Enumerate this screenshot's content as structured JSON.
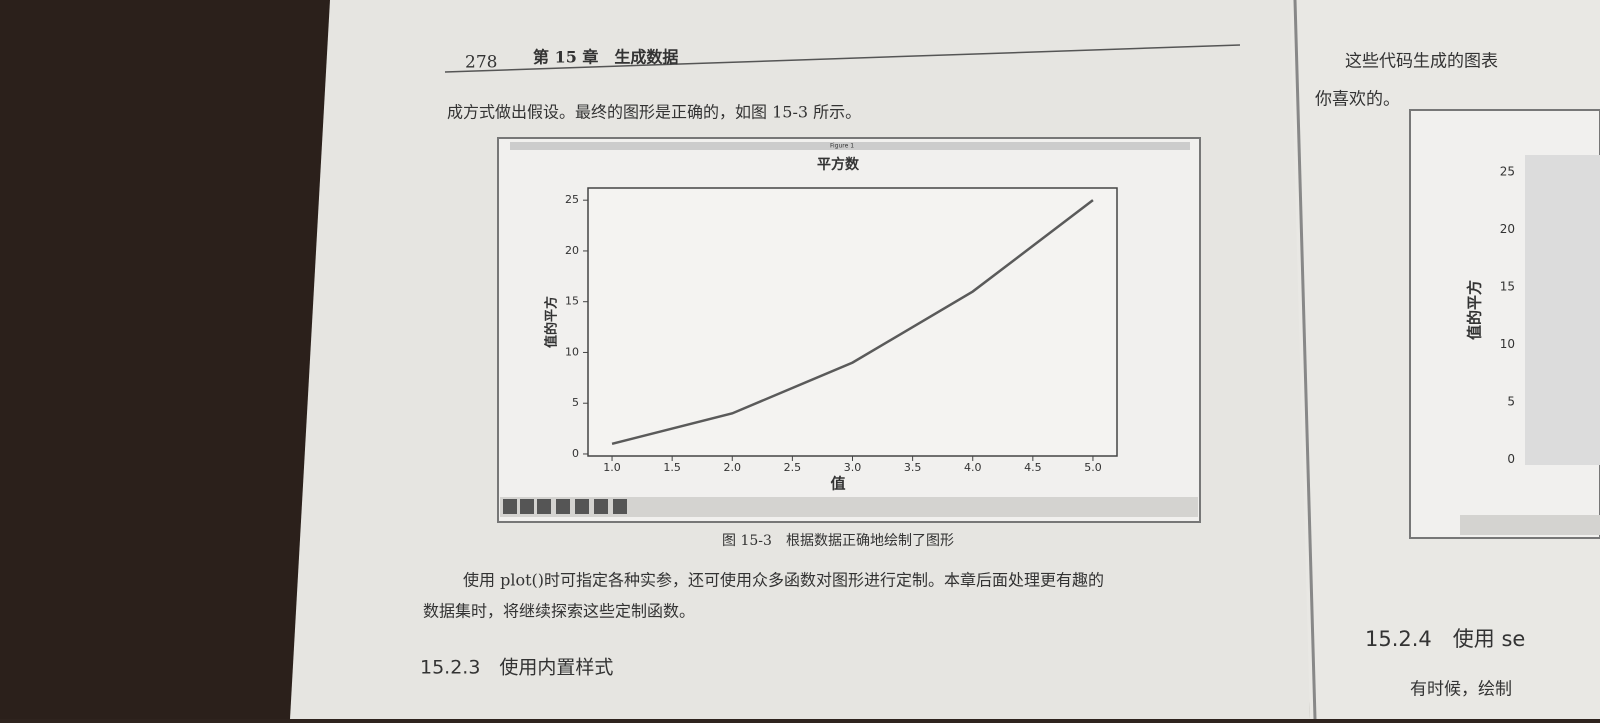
{
  "header": {
    "page_number": "278",
    "chapter": "第 15 章　生成数据"
  },
  "body": {
    "intro": "成方式做出假设。最终的图形是正确的，如图 15-3 所示。",
    "caption": "图 15-3　根据数据正确地绘制了图形",
    "paragraph_lines": [
      "使用 plot()时可指定各种实参，还可使用众多函数对图形进行定制。本章后面处理更有趣的",
      "数据集时，将继续探索这些定制函数。"
    ],
    "section_heading": "15.2.3　使用内置样式"
  },
  "window_title": "Figure 1",
  "chart_data": {
    "type": "line",
    "title": "平方数",
    "xlabel": "值",
    "ylabel": "值的平方",
    "x": [
      1,
      2,
      3,
      4,
      5
    ],
    "values": [
      1,
      4,
      9,
      16,
      25
    ],
    "color": "#5a5a5a",
    "xlim": [
      0.8,
      5.2
    ],
    "ylim": [
      -0.2,
      26.2
    ],
    "xticks": [
      {
        "value": 1,
        "label": "1.0"
      },
      {
        "value": 1.5,
        "label": "1.5"
      },
      {
        "value": 2,
        "label": "2.0"
      },
      {
        "value": 2.5,
        "label": "2.5"
      },
      {
        "value": 3,
        "label": "3.0"
      },
      {
        "value": 3.5,
        "label": "3.5"
      },
      {
        "value": 4,
        "label": "4.0"
      },
      {
        "value": 4.5,
        "label": "4.5"
      },
      {
        "value": 5,
        "label": "5.0"
      }
    ],
    "yticks": [
      0,
      5,
      10,
      15,
      20,
      25
    ],
    "grid": false
  },
  "right_page": {
    "line1": "这些代码生成的图表",
    "line2": "你喜欢的。",
    "figure_ylabel": "值的平方",
    "figure_yticks": [
      25,
      20,
      15,
      10,
      5,
      0
    ],
    "section_heading": "15.2.4　使用 se",
    "next_line": "有时候，绘制"
  }
}
